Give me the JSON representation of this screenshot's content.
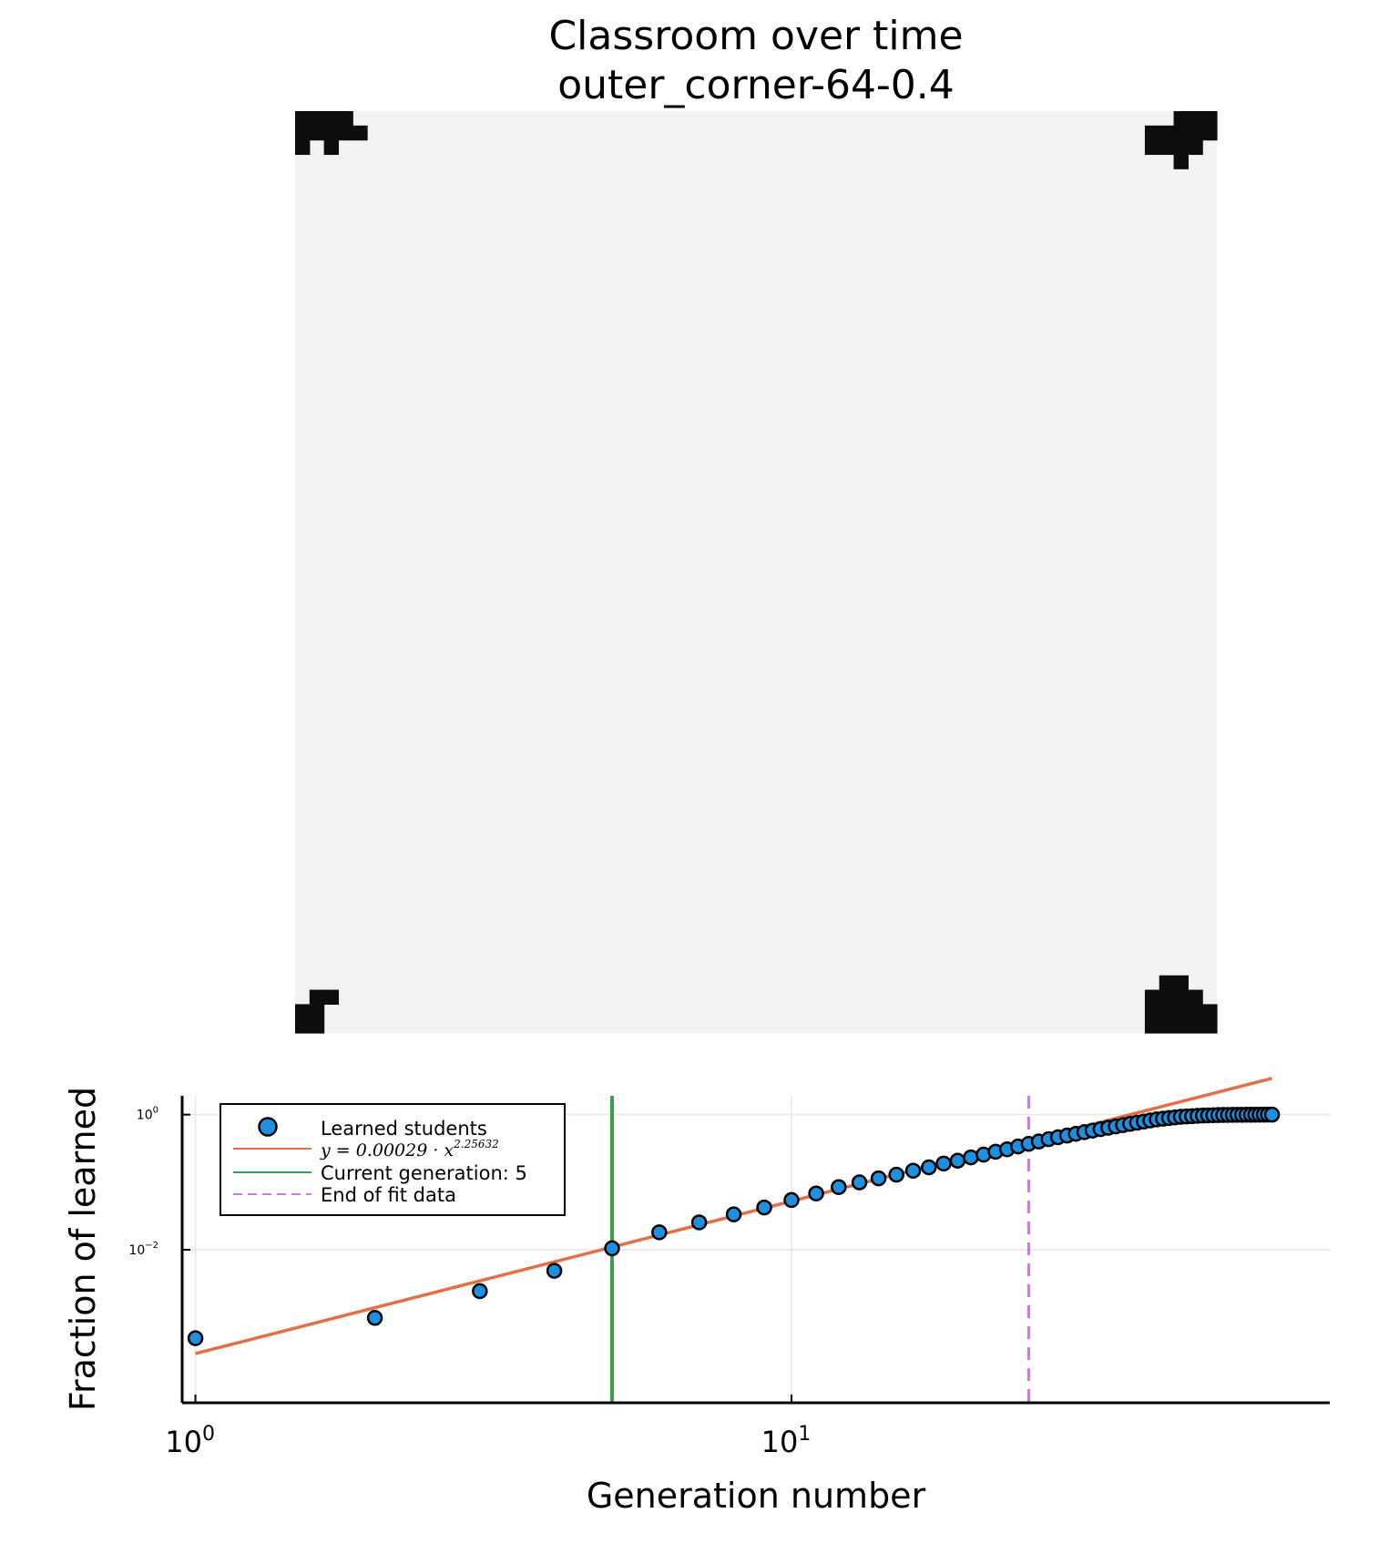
{
  "title_line1": "Classroom over time",
  "title_line2": "outer_corner-64-0.4",
  "colors": {
    "grid_bg": "#f2f2f2",
    "learned_cell": "#0d0d0d",
    "scatter_fill": "#1e90e0",
    "fit_line": "#e26f46",
    "current_gen": "#3ba146",
    "end_fit": "#c27fd6",
    "gridline": "#e6e6e6"
  },
  "classroom": {
    "cells": 64,
    "learned_cells": [
      [
        0,
        0
      ],
      [
        1,
        0
      ],
      [
        2,
        0
      ],
      [
        3,
        0
      ],
      [
        0,
        1
      ],
      [
        1,
        1
      ],
      [
        2,
        1
      ],
      [
        3,
        1
      ],
      [
        4,
        1
      ],
      [
        0,
        2
      ],
      [
        2,
        2
      ],
      [
        61,
        0
      ],
      [
        62,
        0
      ],
      [
        63,
        0
      ],
      [
        59,
        1
      ],
      [
        60,
        1
      ],
      [
        61,
        1
      ],
      [
        62,
        1
      ],
      [
        63,
        1
      ],
      [
        59,
        2
      ],
      [
        60,
        2
      ],
      [
        61,
        2
      ],
      [
        62,
        2
      ],
      [
        61,
        3
      ],
      [
        1,
        61
      ],
      [
        2,
        61
      ],
      [
        0,
        62
      ],
      [
        1,
        62
      ],
      [
        0,
        63
      ],
      [
        1,
        63
      ],
      [
        60,
        60
      ],
      [
        61,
        60
      ],
      [
        59,
        61
      ],
      [
        60,
        61
      ],
      [
        61,
        61
      ],
      [
        62,
        61
      ],
      [
        59,
        62
      ],
      [
        60,
        62
      ],
      [
        61,
        62
      ],
      [
        62,
        62
      ],
      [
        63,
        62
      ],
      [
        59,
        63
      ],
      [
        60,
        63
      ],
      [
        61,
        63
      ],
      [
        62,
        63
      ],
      [
        63,
        63
      ]
    ]
  },
  "chart_data": {
    "type": "scatter",
    "xlabel": "Generation number",
    "ylabel": "Fraction of learned",
    "xscale": "log",
    "yscale": "log",
    "xlim": [
      0.95,
      80
    ],
    "ylim": [
      5.42e-05,
      1.9
    ],
    "grid": true,
    "legend_position": "top-left",
    "x_ticks": [
      {
        "value": 1,
        "base": "10",
        "exp": "0"
      },
      {
        "value": 10,
        "base": "10",
        "exp": "1"
      }
    ],
    "y_ticks": [
      {
        "value": 1,
        "base": "10",
        "exp": "0"
      },
      {
        "value": 0.01,
        "base": "10",
        "exp": "−2"
      }
    ],
    "series": [
      {
        "name": "Learned students",
        "kind": "scatter",
        "x": [
          1,
          2,
          3,
          4,
          5,
          6,
          7,
          8,
          9,
          10,
          11,
          12,
          13,
          14,
          15,
          16,
          17,
          18,
          19,
          20,
          21,
          22,
          23,
          24,
          25,
          26,
          27,
          28,
          29,
          30,
          31,
          32,
          33,
          34,
          35,
          36,
          37,
          38,
          39,
          40,
          41,
          42,
          43,
          44,
          45,
          46,
          47,
          48,
          49,
          50,
          51,
          52,
          53,
          54,
          55,
          56,
          57,
          58,
          59,
          60,
          61,
          62,
          63,
          64
        ],
        "y": [
          0.00049,
          0.00098,
          0.00244,
          0.00488,
          0.0105,
          0.0181,
          0.0254,
          0.0334,
          0.0422,
          0.0544,
          0.0681,
          0.0845,
          0.0994,
          0.114,
          0.129,
          0.148,
          0.166,
          0.189,
          0.208,
          0.233,
          0.256,
          0.282,
          0.307,
          0.338,
          0.37,
          0.4,
          0.433,
          0.463,
          0.49,
          0.52,
          0.55,
          0.58,
          0.61,
          0.64,
          0.67,
          0.7,
          0.73,
          0.76,
          0.79,
          0.82,
          0.85,
          0.87,
          0.89,
          0.91,
          0.93,
          0.94,
          0.95,
          0.96,
          0.97,
          0.975,
          0.98,
          0.985,
          0.988,
          0.99,
          0.992,
          0.994,
          0.995,
          0.996,
          0.997,
          0.998,
          0.9985,
          0.999,
          0.9995,
          1.0
        ]
      },
      {
        "name": "y = 0.00029 · x^2.25632",
        "name_parts": {
          "lhs": "y = 0.00029 · x",
          "exp": "2.25632"
        },
        "kind": "line",
        "coef": 0.00029,
        "power": 2.25632,
        "x_range": [
          1,
          64
        ]
      },
      {
        "name": "Current generation: 5",
        "kind": "vline",
        "x": 5
      },
      {
        "name": "End of fit data",
        "kind": "vline-dashed",
        "x": 25
      }
    ]
  }
}
